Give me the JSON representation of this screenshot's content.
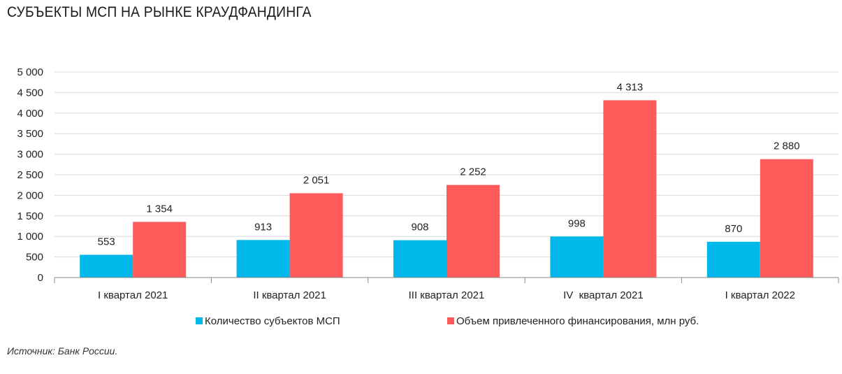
{
  "title": "СУБЪЕКТЫ МСП НА РЫНКЕ КРАУДФАНДИНГА",
  "source": "Источник: Банк России.",
  "colors": {
    "series1": "#00B8EA",
    "series2": "#FF5A5A",
    "grid": "#D9D9D9",
    "axis": "#888888"
  },
  "chart_data": {
    "type": "bar",
    "categories": [
      "I квартал 2021",
      "II квартал 2021",
      "III квартал 2021",
      "IV  квартал 2021",
      "I квартал 2022"
    ],
    "series": [
      {
        "name": "Количество субъектов МСП",
        "values": [
          553,
          913,
          908,
          998,
          870
        ],
        "labels": [
          "553",
          "913",
          "908",
          "998",
          "870"
        ]
      },
      {
        "name": "Объем привлеченного финансирования, млн руб.",
        "values": [
          1354,
          2051,
          2252,
          4313,
          2880
        ],
        "labels": [
          "1 354",
          "2 051",
          "2 252",
          "4 313",
          "2 880"
        ]
      }
    ],
    "y_ticks": [
      "0",
      "500",
      "1 000",
      "1 500",
      "2 000",
      "2 500",
      "3 000",
      "3 500",
      "4 000",
      "4 500",
      "5 000"
    ],
    "ylim": [
      0,
      5000
    ],
    "grid": true,
    "legend_position": "bottom"
  }
}
